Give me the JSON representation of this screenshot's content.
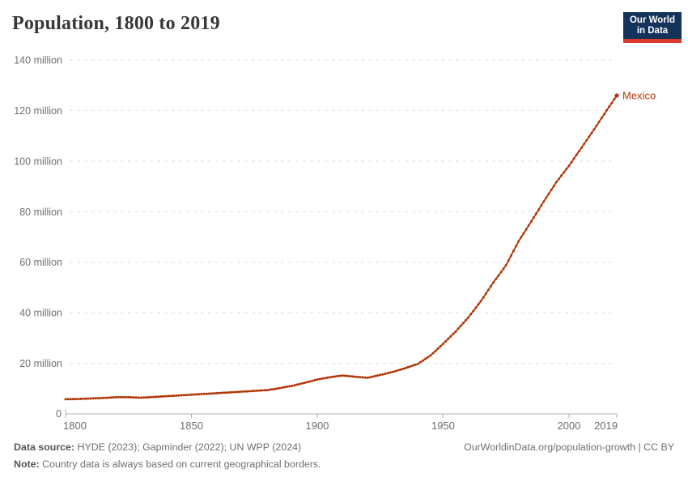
{
  "header": {
    "title": "Population, 1800 to 2019",
    "logo": {
      "line1": "Our World",
      "line2": "in Data"
    }
  },
  "colors": {
    "series": "#b13507",
    "grid": "#dedede",
    "axis": "#b3b3b3",
    "tick_label": "#6e6e6e",
    "title_text": "#373737",
    "logo_background": "#14335a",
    "logo_stripe": "#d93a2d",
    "footer_text": "#6f6f6f"
  },
  "chart_data": {
    "type": "line",
    "title": "Population, 1800 to 2019",
    "xlabel": "",
    "ylabel": "",
    "x_range": [
      1800,
      2019
    ],
    "x_ticks": [
      1800,
      1850,
      1900,
      1950,
      2000,
      2019
    ],
    "y_range": [
      0,
      140
    ],
    "y_unit": "million people",
    "y_ticks": [
      0,
      20,
      40,
      60,
      80,
      100,
      120,
      140
    ],
    "y_tick_labels": [
      "0",
      "20 million",
      "40 million",
      "60 million",
      "80 million",
      "100 million",
      "120 million",
      "140 million"
    ],
    "grid": "dashed-horizontal",
    "legend_position": "end-of-line",
    "marker_style": "yearly-dots",
    "series": [
      {
        "name": "Mexico",
        "color": "#b13507",
        "points_unit": "million people",
        "points": [
          [
            1800,
            5.8
          ],
          [
            1805,
            5.9
          ],
          [
            1810,
            6.1
          ],
          [
            1815,
            6.3
          ],
          [
            1820,
            6.6
          ],
          [
            1825,
            6.6
          ],
          [
            1830,
            6.4
          ],
          [
            1835,
            6.7
          ],
          [
            1840,
            7.0
          ],
          [
            1845,
            7.3
          ],
          [
            1850,
            7.6
          ],
          [
            1855,
            7.9
          ],
          [
            1860,
            8.2
          ],
          [
            1865,
            8.5
          ],
          [
            1870,
            8.8
          ],
          [
            1875,
            9.1
          ],
          [
            1880,
            9.4
          ],
          [
            1885,
            10.2
          ],
          [
            1890,
            11.1
          ],
          [
            1895,
            12.3
          ],
          [
            1900,
            13.6
          ],
          [
            1905,
            14.5
          ],
          [
            1910,
            15.2
          ],
          [
            1915,
            14.7
          ],
          [
            1920,
            14.3
          ],
          [
            1925,
            15.4
          ],
          [
            1930,
            16.6
          ],
          [
            1935,
            18.1
          ],
          [
            1940,
            19.8
          ],
          [
            1945,
            23.1
          ],
          [
            1950,
            27.7
          ],
          [
            1955,
            32.6
          ],
          [
            1960,
            38.1
          ],
          [
            1965,
            44.6
          ],
          [
            1970,
            52.0
          ],
          [
            1975,
            58.8
          ],
          [
            1980,
            68.3
          ],
          [
            1985,
            76.1
          ],
          [
            1990,
            84.0
          ],
          [
            1995,
            91.7
          ],
          [
            2000,
            98.1
          ],
          [
            2005,
            105.3
          ],
          [
            2010,
            112.5
          ],
          [
            2015,
            120.1
          ],
          [
            2019,
            125.9
          ]
        ]
      }
    ]
  },
  "footer": {
    "data_source_label": "Data source:",
    "data_source_text": " HYDE (2023); Gapminder (2022); UN WPP (2024)",
    "attribution": "OurWorldinData.org/population-growth | CC BY",
    "note_label": "Note:",
    "note_text": " Country data is always based on current geographical borders."
  }
}
